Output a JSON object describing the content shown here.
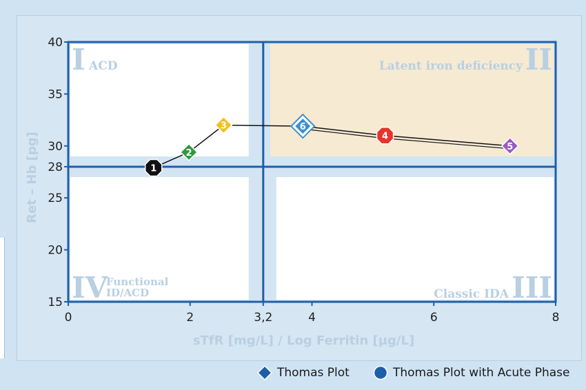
{
  "colors": {
    "axis": "#1f5fa8",
    "quadrant_label": "#b9cfe2",
    "quadrant_fill": "#ffffff",
    "latent_fill": "#f6ead2",
    "ticks": "#222222"
  },
  "chart_data": {
    "type": "scatter",
    "xlabel": "sTfR [mg/L] / Log Ferritin [µg/L]",
    "ylabel": "Ret – Hb [pg]",
    "xlim": [
      0,
      8
    ],
    "ylim": [
      15,
      40
    ],
    "x_ticks": [
      {
        "v": 0,
        "label": "0"
      },
      {
        "v": 2,
        "label": "2"
      },
      {
        "v": 3.2,
        "label": "3,2"
      },
      {
        "v": 4,
        "label": "4"
      },
      {
        "v": 6,
        "label": "6"
      },
      {
        "v": 8,
        "label": "8"
      }
    ],
    "y_ticks": [
      {
        "v": 15,
        "label": "15"
      },
      {
        "v": 20,
        "label": "20"
      },
      {
        "v": 25,
        "label": "25"
      },
      {
        "v": 28,
        "label": "28"
      },
      {
        "v": 30,
        "label": "30"
      },
      {
        "v": 35,
        "label": "35"
      },
      {
        "v": 40,
        "label": "40"
      }
    ],
    "thresholds": {
      "x": 3.2,
      "y": 28
    },
    "quadrants": [
      {
        "numeral": "I",
        "label": "ACD"
      },
      {
        "numeral": "II",
        "label": "Latent iron deficiency"
      },
      {
        "numeral": "III",
        "label": "Classic IDA"
      },
      {
        "numeral": "IV",
        "label_line1": "Functional",
        "label_line2": "ID/ACD"
      }
    ],
    "points": [
      {
        "id": "1",
        "x": 1.4,
        "y": 27.9,
        "color": "#111111",
        "marker": "octagon",
        "order": 1
      },
      {
        "id": "2",
        "x": 1.98,
        "y": 29.4,
        "color": "#2e9a3e",
        "marker": "diamond",
        "order": 2
      },
      {
        "id": "3",
        "x": 2.55,
        "y": 32.0,
        "color": "#f0c020",
        "marker": "diamond",
        "order": 3
      },
      {
        "id": "6",
        "x": 3.85,
        "y": 31.9,
        "color": "#3a8fd0",
        "marker": "diamond-big",
        "order": 4
      },
      {
        "id": "4",
        "x": 5.2,
        "y": 31.0,
        "color": "#e8332a",
        "marker": "octagon",
        "order": 5
      },
      {
        "id": "5",
        "x": 7.25,
        "y": 30.0,
        "color": "#9a5ac2",
        "marker": "diamond",
        "order": 6
      }
    ]
  },
  "legend": {
    "items": [
      {
        "label": "Thomas Plot",
        "marker": "diamond",
        "color": "#1f5fa8"
      },
      {
        "label": "Thomas Plot with Acute Phase",
        "marker": "circle",
        "color": "#1f5fa8"
      }
    ]
  }
}
